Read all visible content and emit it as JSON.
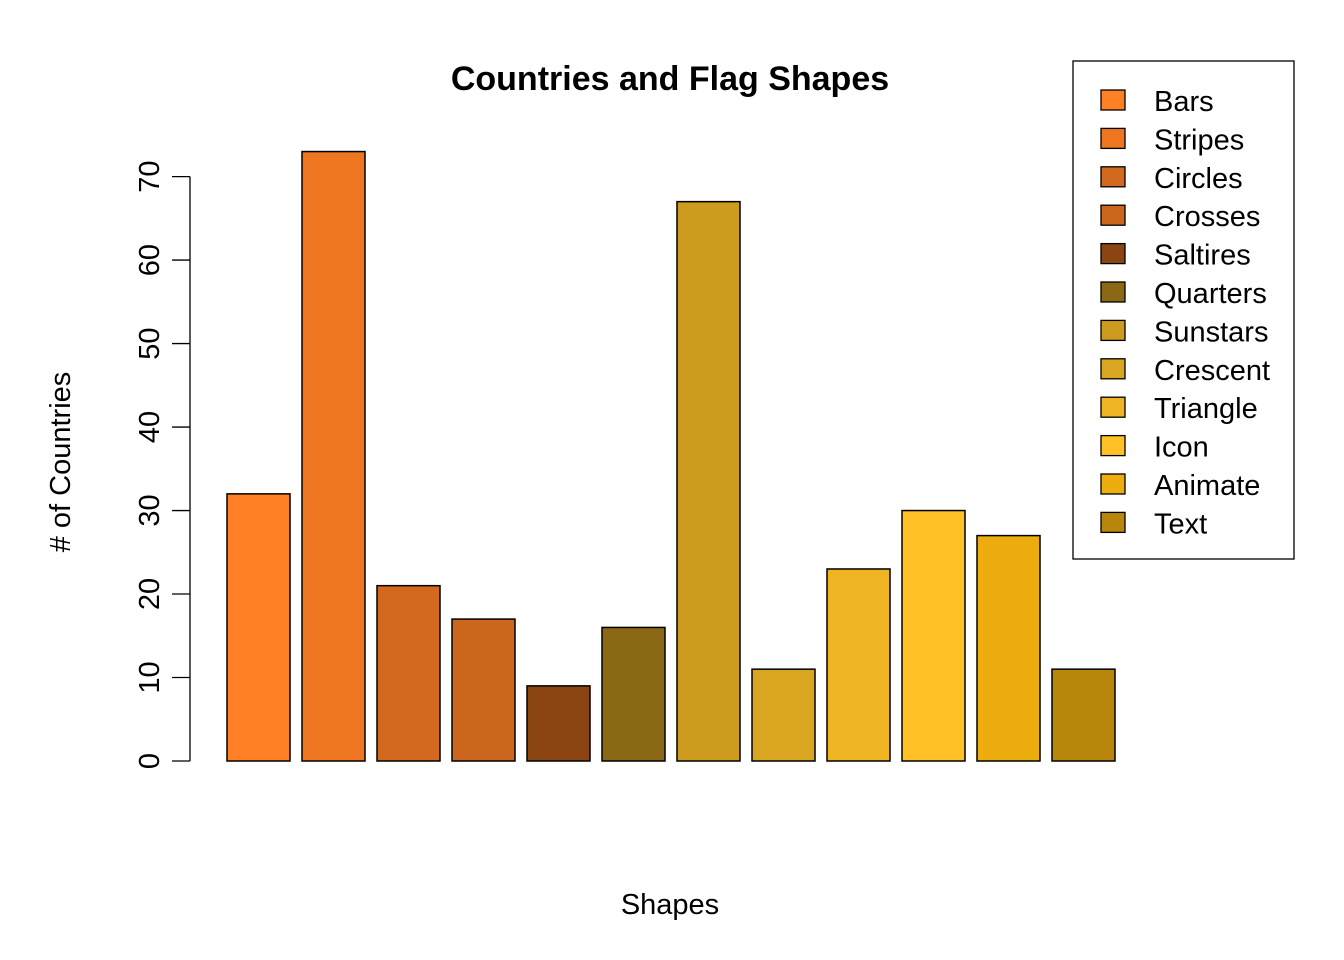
{
  "chart_data": {
    "type": "bar",
    "title": "Countries and Flag Shapes",
    "xlabel": "Shapes",
    "ylabel": "# of Countries",
    "categories": [
      "Bars",
      "Stripes",
      "Circles",
      "Crosses",
      "Saltires",
      "Quarters",
      "Sunstars",
      "Crescent",
      "Triangle",
      "Icon",
      "Animate",
      "Text"
    ],
    "values": [
      32,
      73,
      21,
      17,
      9,
      16,
      67,
      11,
      23,
      30,
      27,
      11
    ],
    "colors": [
      "#FF7F24",
      "#EE7621",
      "#D2691E",
      "#CD661D",
      "#8B4513",
      "#8B6914",
      "#CD9B1D",
      "#DAA520",
      "#EEB422",
      "#FFC125",
      "#EEAD0E",
      "#B8860B"
    ],
    "ylim": [
      0,
      73
    ],
    "yticks": [
      0,
      10,
      20,
      30,
      40,
      50,
      60,
      70
    ],
    "grid": false,
    "legend_position": "top-right",
    "legend": [
      "Bars",
      "Stripes",
      "Circles",
      "Crosses",
      "Saltires",
      "Quarters",
      "Sunstars",
      "Crescent",
      "Triangle",
      "Icon",
      "Animate",
      "Text"
    ]
  }
}
